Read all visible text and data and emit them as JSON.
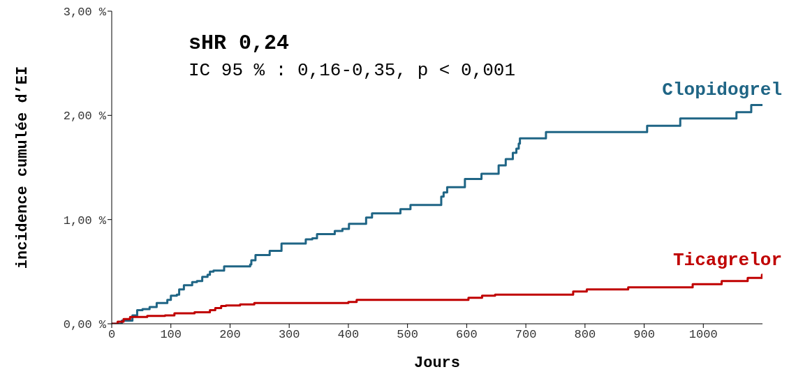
{
  "chart_data": {
    "type": "step",
    "xlabel": "Jours",
    "ylabel": "incidence cumulée d’EI",
    "annotations": [
      "sHR 0,24",
      "IC 95 % : 0,16-0,35, p < 0,001"
    ],
    "xlim": [
      0,
      1100
    ],
    "xticks": [
      0,
      100,
      200,
      300,
      400,
      500,
      600,
      700,
      800,
      900,
      1000
    ],
    "ylim": [
      0,
      3
    ],
    "yticks": [
      {
        "value": 0,
        "label": "0,00 %"
      },
      {
        "value": 1,
        "label": "1,00 %"
      },
      {
        "value": 2,
        "label": "2,00 %"
      },
      {
        "value": 3,
        "label": "3,00 %"
      }
    ],
    "grid": false,
    "legend": false,
    "line_style": "solid",
    "marker": "none",
    "series": [
      {
        "name": "Clopidogrel",
        "color": "#1f6585",
        "x": [
          0,
          17,
          35,
          43,
          52,
          64,
          76,
          94,
          100,
          110,
          114,
          122,
          136,
          144,
          153,
          162,
          166,
          172,
          190,
          234,
          236,
          243,
          267,
          287,
          328,
          339,
          347,
          377,
          390,
          401,
          430,
          440,
          488,
          505,
          557,
          561,
          567,
          597,
          625,
          654,
          666,
          678,
          684,
          688,
          690,
          734,
          905,
          961,
          1056,
          1081,
          1100
        ],
        "values": [
          0,
          0.03,
          0.08,
          0.13,
          0.14,
          0.16,
          0.2,
          0.23,
          0.27,
          0.28,
          0.33,
          0.37,
          0.4,
          0.41,
          0.45,
          0.47,
          0.5,
          0.51,
          0.55,
          0.57,
          0.61,
          0.66,
          0.7,
          0.77,
          0.81,
          0.82,
          0.86,
          0.89,
          0.91,
          0.96,
          1.02,
          1.06,
          1.1,
          1.14,
          1.22,
          1.26,
          1.31,
          1.39,
          1.44,
          1.52,
          1.58,
          1.64,
          1.68,
          1.73,
          1.78,
          1.84,
          1.9,
          1.97,
          2.03,
          2.1,
          2.1
        ]
      },
      {
        "name": "Ticagrelor",
        "color": "#c00000",
        "x": [
          0,
          10,
          20,
          31,
          60,
          90,
          106,
          140,
          166,
          175,
          185,
          193,
          217,
          241,
          400,
          414,
          603,
          626,
          648,
          780,
          803,
          873,
          982,
          1031,
          1075,
          1099,
          1100
        ],
        "values": [
          0,
          0.02,
          0.045,
          0.065,
          0.075,
          0.08,
          0.1,
          0.11,
          0.13,
          0.15,
          0.17,
          0.175,
          0.185,
          0.2,
          0.21,
          0.23,
          0.25,
          0.27,
          0.28,
          0.31,
          0.33,
          0.35,
          0.38,
          0.41,
          0.44,
          0.47,
          0.47
        ]
      }
    ]
  }
}
